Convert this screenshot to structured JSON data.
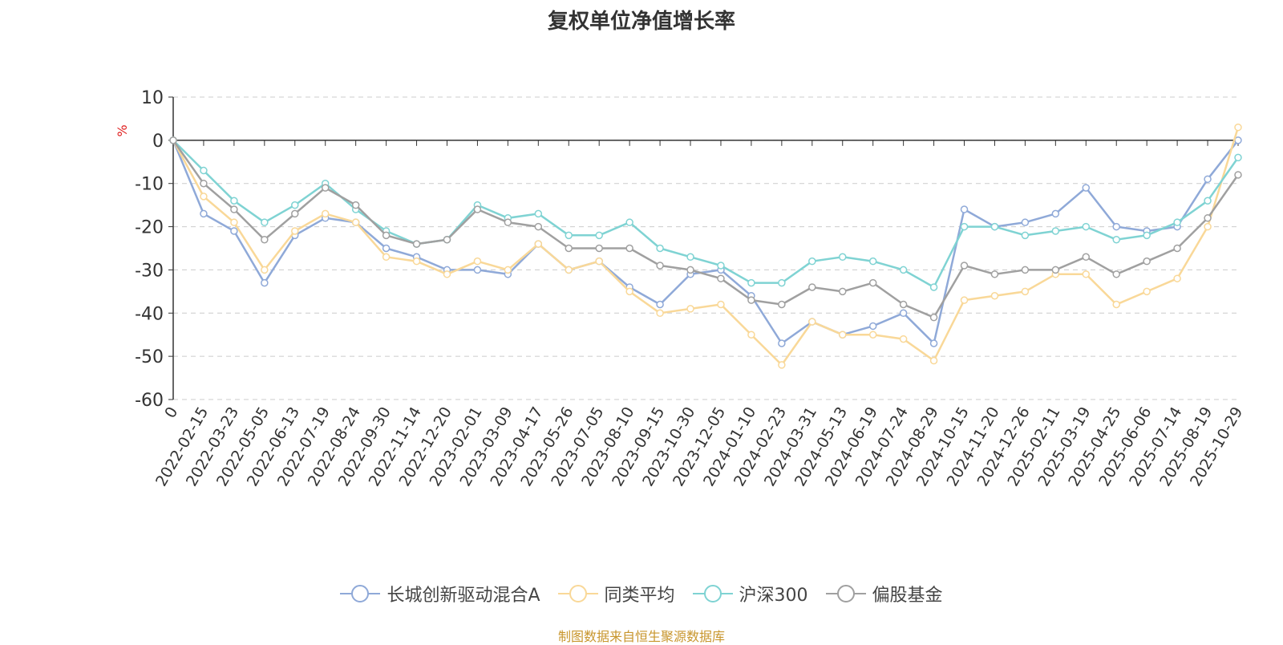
{
  "chart_data": {
    "type": "line",
    "title": "复权单位净值增长率",
    "ylabel": "%",
    "xlabel": "",
    "ylim": [
      -60,
      10
    ],
    "yticks": [
      10,
      0,
      -10,
      -20,
      -30,
      -40,
      -50,
      -60
    ],
    "grid": true,
    "legend_position": "bottom",
    "categories": [
      "0",
      "2022-02-15",
      "2022-03-23",
      "2022-05-05",
      "2022-06-13",
      "2022-07-19",
      "2022-08-24",
      "2022-09-30",
      "2022-11-14",
      "2022-12-20",
      "2023-02-01",
      "2023-03-09",
      "2023-04-17",
      "2023-05-26",
      "2023-07-05",
      "2023-08-10",
      "2023-09-15",
      "2023-10-30",
      "2023-12-05",
      "2024-01-10",
      "2024-02-23",
      "2024-03-31",
      "2024-05-13",
      "2024-06-19",
      "2024-07-24",
      "2024-08-29",
      "2024-10-15",
      "2024-11-20",
      "2024-12-26",
      "2025-02-11",
      "2025-03-19",
      "2025-04-25",
      "2025-06-06",
      "2025-07-14",
      "2025-08-19",
      "2025-10-29"
    ],
    "series": [
      {
        "name": "长城创新驱动混合A",
        "color": "#8fa9d8",
        "values": [
          0,
          -17,
          -21,
          -33,
          -22,
          -18,
          -19,
          -25,
          -27,
          -30,
          -30,
          -31,
          -24,
          -30,
          -28,
          -34,
          -38,
          -31,
          -30,
          -36,
          -47,
          -42,
          -45,
          -43,
          -40,
          -47,
          -16,
          -20,
          -19,
          -17,
          -11,
          -20,
          -21,
          -20,
          -9,
          0
        ]
      },
      {
        "name": "同类平均",
        "color": "#f9d898",
        "values": [
          0,
          -13,
          -19,
          -30,
          -21,
          -17,
          -19,
          -27,
          -28,
          -31,
          -28,
          -30,
          -24,
          -30,
          -28,
          -35,
          -40,
          -39,
          -38,
          -45,
          -52,
          -42,
          -45,
          -45,
          -46,
          -51,
          -37,
          -36,
          -35,
          -31,
          -31,
          -38,
          -35,
          -32,
          -20,
          3
        ]
      },
      {
        "name": "沪深300",
        "color": "#7fd3d3",
        "values": [
          0,
          -7,
          -14,
          -19,
          -15,
          -10,
          -16,
          -21,
          -24,
          -23,
          -15,
          -18,
          -17,
          -22,
          -22,
          -19,
          -25,
          -27,
          -29,
          -33,
          -33,
          -28,
          -27,
          -28,
          -30,
          -34,
          -20,
          -20,
          -22,
          -21,
          -20,
          -23,
          -22,
          -19,
          -14,
          -4
        ]
      },
      {
        "name": "偏股基金",
        "color": "#a0a0a0",
        "values": [
          0,
          -10,
          -16,
          -23,
          -17,
          -11,
          -15,
          -22,
          -24,
          -23,
          -16,
          -19,
          -20,
          -25,
          -25,
          -25,
          -29,
          -30,
          -32,
          -37,
          -38,
          -34,
          -35,
          -33,
          -38,
          -41,
          -29,
          -31,
          -30,
          -30,
          -27,
          -31,
          -28,
          -25,
          -18,
          -8
        ]
      }
    ]
  },
  "footer": {
    "source": "制图数据来自恒生聚源数据库"
  }
}
